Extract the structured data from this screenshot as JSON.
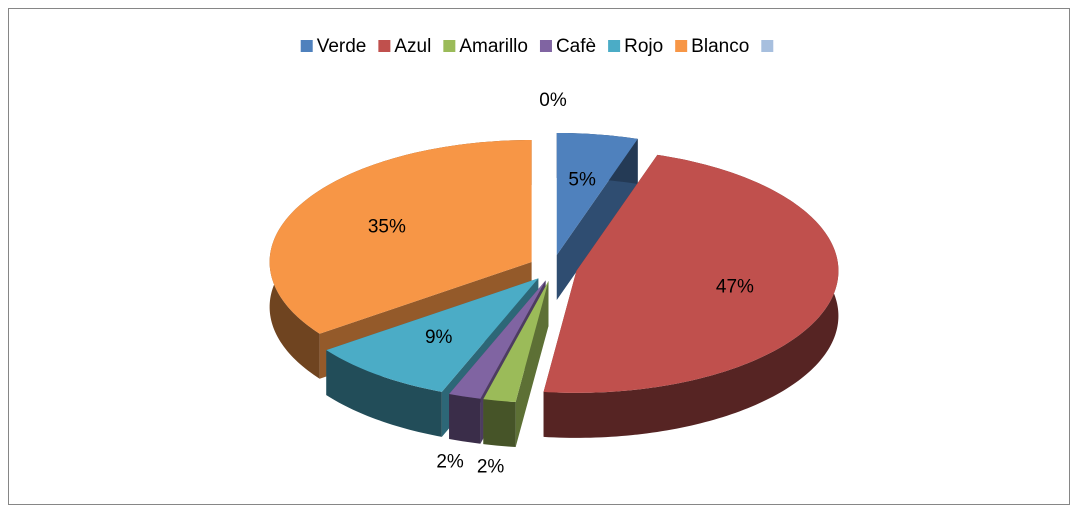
{
  "chart_data": {
    "type": "pie3d",
    "categories": [
      "Verde",
      "Azul",
      "Amarillo",
      "Cafè",
      "Rojo",
      "Blanco",
      null
    ],
    "values": [
      5,
      47,
      2,
      2,
      9,
      35,
      0
    ],
    "value_labels": [
      "5%",
      "47%",
      "2%",
      "2%",
      "9%",
      "35%",
      "0%"
    ],
    "colors": [
      "#4f81bd",
      "#c0504d",
      "#9bbb59",
      "#8064a2",
      "#4bacc6",
      "#f79646",
      "#a7bfde"
    ],
    "legend": "top"
  }
}
